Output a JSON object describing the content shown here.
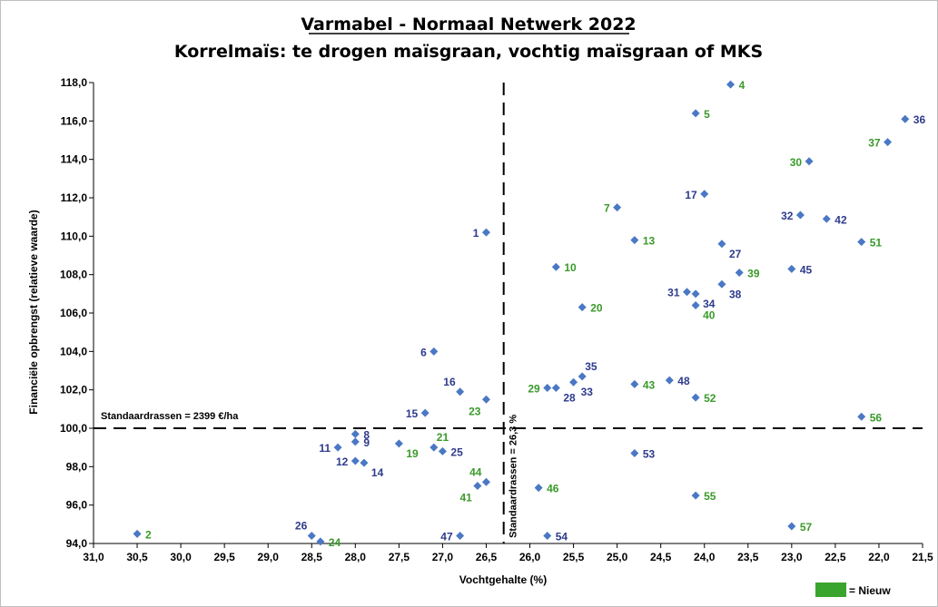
{
  "colors": {
    "old": "#2e3a8c",
    "new": "#3a9a2a",
    "marker": "#4a78c4",
    "legend_box": "#3aa52e",
    "legend_text": "#3aa52e"
  },
  "chart_data": {
    "type": "scatter",
    "title": "Varmabel - Normaal Netwerk 2022",
    "subtitle": "Korrelmaïs: te drogen maïsgraan, vochtig maïsgraan of MKS",
    "xlabel": "Vochtgehalte (%)",
    "ylabel": "Financiële opbrengst (relatieve waarde)",
    "x_reversed": true,
    "xlim": [
      31.0,
      21.5
    ],
    "ylim": [
      94.0,
      118.0
    ],
    "x_ticks": [
      "31,0",
      "30,5",
      "30,0",
      "29,5",
      "29,0",
      "28,5",
      "28,0",
      "27,5",
      "27,0",
      "26,5",
      "26,0",
      "25,5",
      "25,0",
      "24,5",
      "24,0",
      "23,5",
      "23,0",
      "22,5",
      "22,0",
      "21,5"
    ],
    "y_ticks": [
      "94,0",
      "96,0",
      "98,0",
      "100,0",
      "102,0",
      "104,0",
      "106,0",
      "108,0",
      "110,0",
      "112,0",
      "114,0",
      "116,0",
      "118,0"
    ],
    "x_tick_values": [
      31.0,
      30.5,
      30.0,
      29.5,
      29.0,
      28.5,
      28.0,
      27.5,
      27.0,
      26.5,
      26.0,
      25.5,
      25.0,
      24.5,
      24.0,
      23.5,
      23.0,
      22.5,
      22.0,
      21.5
    ],
    "y_tick_values": [
      94,
      96,
      98,
      100,
      102,
      104,
      106,
      108,
      110,
      112,
      114,
      116,
      118
    ],
    "grid": false,
    "ref_lines": [
      {
        "orientation": "horizontal",
        "value": 100.0,
        "label": "Standaardrassen = 2399 €/ha"
      },
      {
        "orientation": "vertical",
        "value": 26.3,
        "label": "Standaardrassen = 26,3 %"
      }
    ],
    "legend": {
      "label": "= Nieuw",
      "position": "bottom-right"
    },
    "points": [
      {
        "label": "1",
        "x": 26.5,
        "y": 110.2,
        "new": false,
        "pos": "left"
      },
      {
        "label": "2",
        "x": 30.5,
        "y": 94.5,
        "new": true,
        "pos": "right"
      },
      {
        "label": "4",
        "x": 23.7,
        "y": 117.9,
        "new": true,
        "pos": "right"
      },
      {
        "label": "5",
        "x": 24.1,
        "y": 116.4,
        "new": true,
        "pos": "right"
      },
      {
        "label": "6",
        "x": 27.1,
        "y": 104.0,
        "new": false,
        "pos": "left"
      },
      {
        "label": "7",
        "x": 25.0,
        "y": 111.5,
        "new": true,
        "pos": "left"
      },
      {
        "label": "8",
        "x": 28.0,
        "y": 99.7,
        "new": false,
        "pos": "right"
      },
      {
        "label": "9",
        "x": 28.0,
        "y": 99.3,
        "new": false,
        "pos": "right"
      },
      {
        "label": "10",
        "x": 25.7,
        "y": 108.4,
        "new": true,
        "pos": "right"
      },
      {
        "label": "11",
        "x": 28.2,
        "y": 99.0,
        "new": false,
        "pos": "left"
      },
      {
        "label": "12",
        "x": 28.0,
        "y": 98.3,
        "new": false,
        "pos": "left"
      },
      {
        "label": "13",
        "x": 24.8,
        "y": 109.8,
        "new": true,
        "pos": "right"
      },
      {
        "label": "14",
        "x": 27.9,
        "y": 98.2,
        "new": false,
        "pos": "below-right"
      },
      {
        "label": "15",
        "x": 27.2,
        "y": 100.8,
        "new": false,
        "pos": "left"
      },
      {
        "label": "16",
        "x": 26.8,
        "y": 101.9,
        "new": false,
        "pos": "above-left"
      },
      {
        "label": "17",
        "x": 24.0,
        "y": 112.2,
        "new": false,
        "pos": "left"
      },
      {
        "label": "19",
        "x": 27.5,
        "y": 99.2,
        "new": true,
        "pos": "below-right"
      },
      {
        "label": "20",
        "x": 25.4,
        "y": 106.3,
        "new": true,
        "pos": "right"
      },
      {
        "label": "21",
        "x": 27.1,
        "y": 99.0,
        "new": true,
        "pos": "above-right"
      },
      {
        "label": "23",
        "x": 26.5,
        "y": 101.5,
        "new": true,
        "pos": "below-left"
      },
      {
        "label": "24",
        "x": 28.4,
        "y": 94.1,
        "new": true,
        "pos": "right"
      },
      {
        "label": "25",
        "x": 27.0,
        "y": 98.8,
        "new": false,
        "pos": "right"
      },
      {
        "label": "26",
        "x": 28.5,
        "y": 94.4,
        "new": false,
        "pos": "above-left"
      },
      {
        "label": "27",
        "x": 23.8,
        "y": 109.6,
        "new": false,
        "pos": "below-right"
      },
      {
        "label": "28",
        "x": 25.7,
        "y": 102.1,
        "new": false,
        "pos": "below-right"
      },
      {
        "label": "29",
        "x": 25.8,
        "y": 102.1,
        "new": true,
        "pos": "left"
      },
      {
        "label": "30",
        "x": 22.8,
        "y": 113.9,
        "new": true,
        "pos": "left"
      },
      {
        "label": "31",
        "x": 24.2,
        "y": 107.1,
        "new": false,
        "pos": "left"
      },
      {
        "label": "32",
        "x": 22.9,
        "y": 111.1,
        "new": false,
        "pos": "left"
      },
      {
        "label": "33",
        "x": 25.5,
        "y": 102.4,
        "new": false,
        "pos": "below-right"
      },
      {
        "label": "34",
        "x": 24.1,
        "y": 107.0,
        "new": false,
        "pos": "below-right"
      },
      {
        "label": "35",
        "x": 25.4,
        "y": 102.7,
        "new": false,
        "pos": "above-right"
      },
      {
        "label": "36",
        "x": 21.7,
        "y": 116.1,
        "new": false,
        "pos": "right"
      },
      {
        "label": "37",
        "x": 21.9,
        "y": 114.9,
        "new": true,
        "pos": "left"
      },
      {
        "label": "38",
        "x": 23.8,
        "y": 107.5,
        "new": false,
        "pos": "below-right"
      },
      {
        "label": "39",
        "x": 23.6,
        "y": 108.1,
        "new": true,
        "pos": "right"
      },
      {
        "label": "40",
        "x": 24.1,
        "y": 106.4,
        "new": true,
        "pos": "below-right"
      },
      {
        "label": "41",
        "x": 26.6,
        "y": 97.0,
        "new": true,
        "pos": "below-left"
      },
      {
        "label": "42",
        "x": 22.6,
        "y": 110.9,
        "new": false,
        "pos": "right"
      },
      {
        "label": "43",
        "x": 24.8,
        "y": 102.3,
        "new": true,
        "pos": "right"
      },
      {
        "label": "44",
        "x": 26.5,
        "y": 97.2,
        "new": true,
        "pos": "above-left"
      },
      {
        "label": "45",
        "x": 23.0,
        "y": 108.3,
        "new": false,
        "pos": "right"
      },
      {
        "label": "46",
        "x": 25.9,
        "y": 96.9,
        "new": true,
        "pos": "right"
      },
      {
        "label": "47",
        "x": 26.8,
        "y": 94.4,
        "new": false,
        "pos": "left"
      },
      {
        "label": "48",
        "x": 24.4,
        "y": 102.5,
        "new": false,
        "pos": "right"
      },
      {
        "label": "51",
        "x": 22.2,
        "y": 109.7,
        "new": true,
        "pos": "right"
      },
      {
        "label": "52",
        "x": 24.1,
        "y": 101.6,
        "new": true,
        "pos": "right"
      },
      {
        "label": "53",
        "x": 24.8,
        "y": 98.7,
        "new": false,
        "pos": "right"
      },
      {
        "label": "54",
        "x": 25.8,
        "y": 94.4,
        "new": false,
        "pos": "right"
      },
      {
        "label": "55",
        "x": 24.1,
        "y": 96.5,
        "new": true,
        "pos": "right"
      },
      {
        "label": "56",
        "x": 22.2,
        "y": 100.6,
        "new": true,
        "pos": "right"
      },
      {
        "label": "57",
        "x": 23.0,
        "y": 94.9,
        "new": true,
        "pos": "right"
      }
    ]
  }
}
